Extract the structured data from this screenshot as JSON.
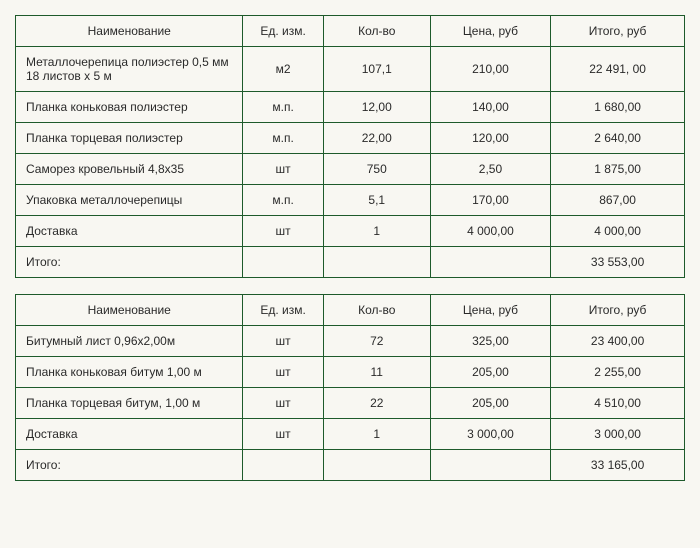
{
  "colors": {
    "background": "#f8f7f2",
    "border": "#1e5a2b",
    "text": "#2a2a2a"
  },
  "typography": {
    "font_family": "Arial",
    "font_size_pt": 9
  },
  "column_widths_pct": [
    34,
    12,
    16,
    18,
    20
  ],
  "tables": [
    {
      "columns": [
        "Наименование",
        "Ед. изм.",
        "Кол-во",
        "Цена, руб",
        "Итого, руб"
      ],
      "rows": [
        [
          "Металлочерепица полиэстер 0,5 мм 18 листов х 5 м",
          "м2",
          "107,1",
          "210,00",
          "22 491, 00"
        ],
        [
          "Планка коньковая полиэстер",
          "м.п.",
          "12,00",
          "140,00",
          "1 680,00"
        ],
        [
          "Планка торцевая полиэстер",
          "м.п.",
          "22,00",
          "120,00",
          "2 640,00"
        ],
        [
          "Саморез кровельный 4,8х35",
          "шт",
          "750",
          "2,50",
          "1 875,00"
        ],
        [
          "Упаковка металлочерепицы",
          "м.п.",
          "5,1",
          "170,00",
          "867,00"
        ],
        [
          "Доставка",
          "шт",
          "1",
          "4 000,00",
          "4 000,00"
        ]
      ],
      "footer": {
        "label": "Итого:",
        "total": "33 553,00"
      }
    },
    {
      "columns": [
        "Наименование",
        "Ед. изм.",
        "Кол-во",
        "Цена, руб",
        "Итого, руб"
      ],
      "rows": [
        [
          "Битумный лист 0,96х2,00м",
          "шт",
          "72",
          "325,00",
          "23 400,00"
        ],
        [
          "Планка коньковая битум 1,00 м",
          "шт",
          "11",
          "205,00",
          "2 255,00"
        ],
        [
          "Планка торцевая битум, 1,00 м",
          "шт",
          "22",
          "205,00",
          "4 510,00"
        ],
        [
          "Доставка",
          "шт",
          "1",
          "3 000,00",
          "3 000,00"
        ]
      ],
      "footer": {
        "label": "Итого:",
        "total": "33 165,00"
      }
    }
  ]
}
